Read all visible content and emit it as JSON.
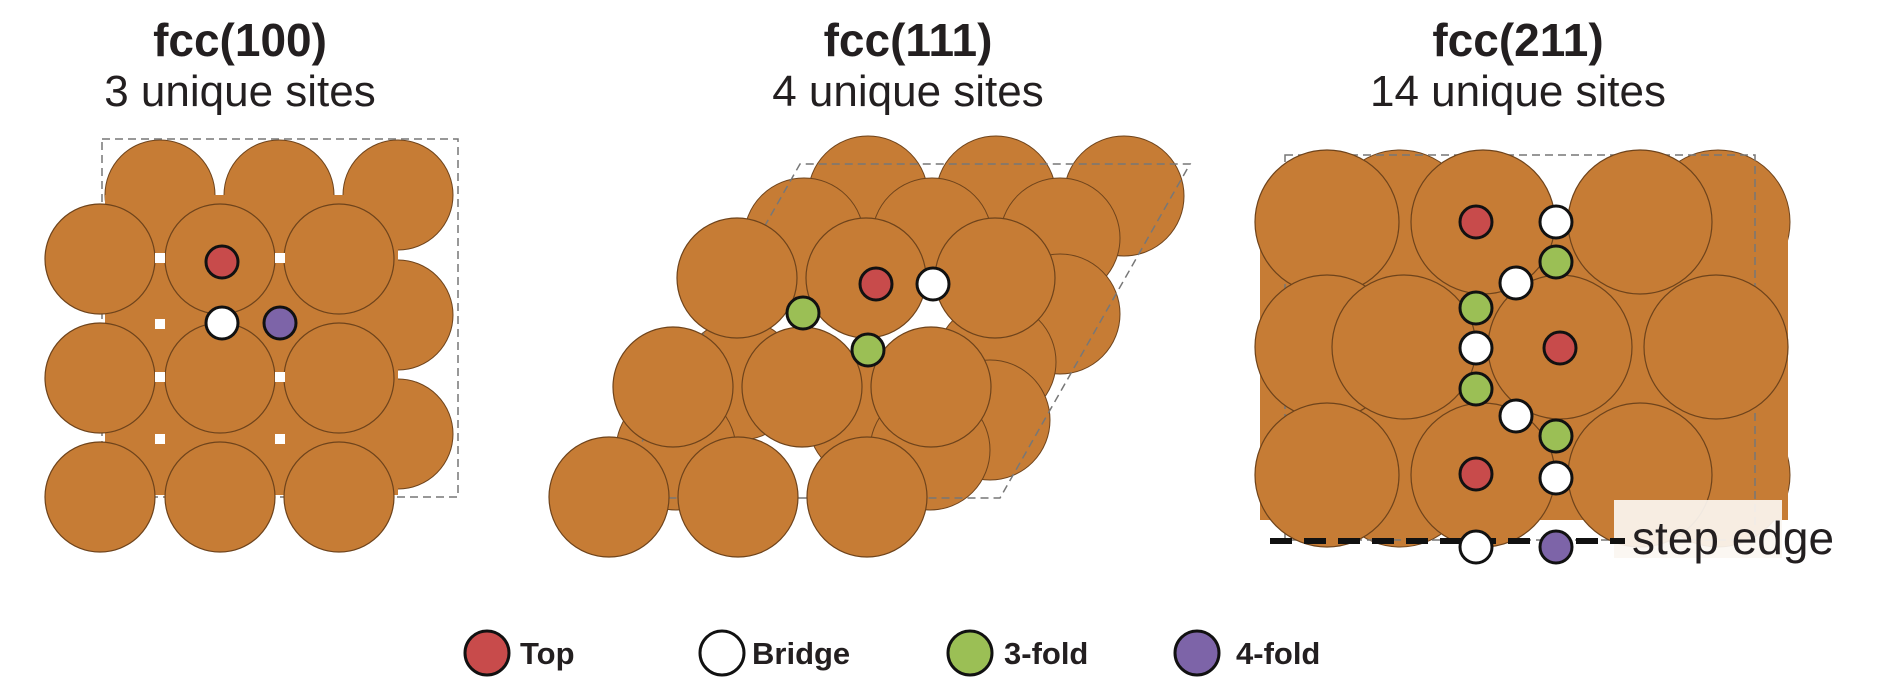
{
  "panels": [
    {
      "title": "fcc(100)",
      "subtitle": "3 unique sites"
    },
    {
      "title": "fcc(111)",
      "subtitle": "4 unique sites"
    },
    {
      "title": "fcc(211)",
      "subtitle": "14 unique sites"
    }
  ],
  "step_edge_label": "step edge",
  "colors": {
    "atom": "#c67c35",
    "top": "#c84b4b",
    "bridge": "#ffffff",
    "threefold": "#9bbf55",
    "fourfold": "#7d64a8"
  },
  "legend": [
    {
      "key": "top",
      "label": "Top"
    },
    {
      "key": "bridge",
      "label": "Bridge"
    },
    {
      "key": "threefold",
      "label": "3-fold"
    },
    {
      "key": "fourfold",
      "label": "4-fold"
    }
  ]
}
